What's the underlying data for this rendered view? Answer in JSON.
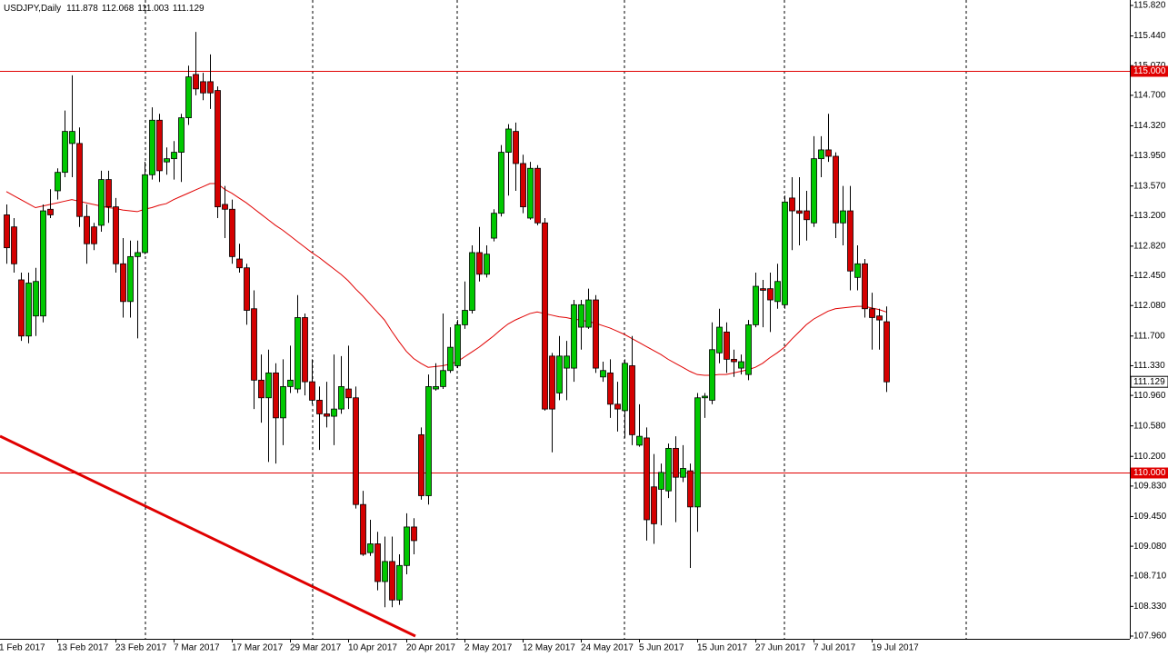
{
  "chart_data": {
    "type": "candlestick",
    "title": "USDJPY,Daily",
    "categories": [
      "1 Feb 2017",
      null,
      null,
      null,
      null,
      null,
      null,
      null,
      "13 Feb 2017",
      null,
      null,
      null,
      null,
      null,
      null,
      null,
      "23 Feb 2017",
      null,
      null,
      null,
      null,
      null,
      null,
      null,
      "7 Mar 2017",
      null,
      null,
      null,
      null,
      null,
      null,
      null,
      "17 Mar 2017",
      null,
      null,
      null,
      null,
      null,
      null,
      null,
      "29 Mar 2017",
      null,
      null,
      null,
      null,
      null,
      null,
      null,
      "10 Apr 2017",
      null,
      null,
      null,
      null,
      null,
      null,
      null,
      "20 Apr 2017",
      null,
      null,
      null,
      null,
      null,
      null,
      null,
      "2 May 2017",
      null,
      null,
      null,
      null,
      null,
      null,
      null,
      "12 May 2017",
      null,
      null,
      null,
      null,
      null,
      null,
      null,
      "24 May 2017",
      null,
      null,
      null,
      null,
      null,
      null,
      null,
      "5 Jun 2017",
      null,
      null,
      null,
      null,
      null,
      null,
      null,
      "15 Jun 2017",
      null,
      null,
      null,
      null,
      null,
      null,
      null,
      "27 Jun 2017",
      null,
      null,
      null,
      null,
      null,
      null,
      null,
      "7 Jul 2017",
      null,
      null,
      null,
      null,
      null,
      null,
      null,
      "19 Jul 2017",
      null
    ],
    "open": [
      113.21,
      113.06,
      112.4,
      111.7,
      111.95,
      111.95,
      113.28,
      113.51,
      113.74,
      114.1,
      114.1,
      113.19,
      113.06,
      113.08,
      113.65,
      113.31,
      112.6,
      112.13,
      112.69,
      112.74,
      113.71,
      114.39,
      113.87,
      113.91,
      113.99,
      114.42,
      114.96,
      114.87,
      114.87,
      114.76,
      113.34,
      113.28,
      112.66,
      112.55,
      112.04,
      111.15,
      110.93,
      111.24,
      110.68,
      111.07,
      111.04,
      111.93,
      111.13,
      110.9,
      110.73,
      110.7,
      110.79,
      111.04,
      110.93,
      109.6,
      109.0,
      109.11,
      108.64,
      108.89,
      108.41,
      108.84,
      109.32,
      110.47,
      109.71,
      111.04,
      111.07,
      111.27,
      111.33,
      111.84,
      112.02,
      112.74,
      112.47,
      112.92,
      113.23,
      113.99,
      114.25,
      113.85,
      113.17,
      113.79,
      113.11,
      111.45,
      110.99,
      111.3,
      111.3,
      111.81,
      111.81,
      112.15,
      111.19,
      111.24,
      110.85,
      110.77,
      111.33,
      110.34,
      110.43,
      109.82,
      109.79,
      109.77,
      110.3,
      109.94,
      110.02,
      109.57,
      110.93,
      110.9,
      111.49,
      111.75,
      111.41,
      111.3,
      111.22,
      111.84,
      112.29,
      112.29,
      112.13,
      112.09,
      113.42,
      113.26,
      113.26,
      113.11,
      113.91,
      114.02,
      113.94,
      113.11,
      113.26,
      112.43,
      112.6,
      112.04,
      111.95,
      111.878
    ],
    "high": [
      113.34,
      113.17,
      112.49,
      112.49,
      112.55,
      113.34,
      113.53,
      113.79,
      114.51,
      114.95,
      114.3,
      113.34,
      113.11,
      113.76,
      113.76,
      113.42,
      112.92,
      112.89,
      112.89,
      113.87,
      114.55,
      114.47,
      114.05,
      114.13,
      114.47,
      115.07,
      115.49,
      114.98,
      115.21,
      114.81,
      113.57,
      113.4,
      112.85,
      112.6,
      112.27,
      111.47,
      111.53,
      111.36,
      111.41,
      111.58,
      112.21,
      111.98,
      111.41,
      111.07,
      111.13,
      111.47,
      111.45,
      111.58,
      111.07,
      109.77,
      109.41,
      109.26,
      109.2,
      109.2,
      108.98,
      109.49,
      109.43,
      110.56,
      111.22,
      111.36,
      111.98,
      111.81,
      111.9,
      112.38,
      112.83,
      113.06,
      112.83,
      113.28,
      114.08,
      114.34,
      114.36,
      113.96,
      113.87,
      113.83,
      113.17,
      111.49,
      111.7,
      111.64,
      112.15,
      112.15,
      112.29,
      112.21,
      111.38,
      111.41,
      111.13,
      111.41,
      111.7,
      110.85,
      110.56,
      110.23,
      110.11,
      110.36,
      110.45,
      110.34,
      110.11,
      110.99,
      110.99,
      111.87,
      112.04,
      111.87,
      111.53,
      111.47,
      111.9,
      112.49,
      112.4,
      112.49,
      112.6,
      113.45,
      113.68,
      113.68,
      113.51,
      114.19,
      114.19,
      114.47,
      113.99,
      113.57,
      113.57,
      112.83,
      112.66,
      112.24,
      112.04,
      112.068
    ],
    "low": [
      112.6,
      112.49,
      111.64,
      111.61,
      111.7,
      111.87,
      113.17,
      113.4,
      113.68,
      113.68,
      113.06,
      112.6,
      112.77,
      113.0,
      113.11,
      112.49,
      111.93,
      111.93,
      111.67,
      112.72,
      113.65,
      113.62,
      113.71,
      113.65,
      113.62,
      114.33,
      114.7,
      114.64,
      114.53,
      113.17,
      112.92,
      112.6,
      112.49,
      111.84,
      110.79,
      110.62,
      110.13,
      110.11,
      110.34,
      110.99,
      110.99,
      110.96,
      110.85,
      110.28,
      110.56,
      110.34,
      110.73,
      110.79,
      109.55,
      108.96,
      108.96,
      108.53,
      108.32,
      108.32,
      108.35,
      108.73,
      108.98,
      109.66,
      109.6,
      111.02,
      111.04,
      111.24,
      111.3,
      111.79,
      111.98,
      112.38,
      112.43,
      112.88,
      113.19,
      113.45,
      113.51,
      113.23,
      113.15,
      113.08,
      110.77,
      110.25,
      110.9,
      110.9,
      111.13,
      111.53,
      111.79,
      111.24,
      111.13,
      110.68,
      110.51,
      110.43,
      110.34,
      110.32,
      109.15,
      109.11,
      109.34,
      109.68,
      109.38,
      109.88,
      108.81,
      109.26,
      110.68,
      110.85,
      111.36,
      111.24,
      111.19,
      111.22,
      111.15,
      111.81,
      111.81,
      111.75,
      112.04,
      112.04,
      112.77,
      112.83,
      112.89,
      113.06,
      113.68,
      113.87,
      112.92,
      112.83,
      112.27,
      112.27,
      111.93,
      111.53,
      111.53,
      111.003
    ],
    "close": [
      112.8,
      112.6,
      111.7,
      112.36,
      112.38,
      113.26,
      113.21,
      113.74,
      114.25,
      114.25,
      113.19,
      112.85,
      112.85,
      113.65,
      113.31,
      112.6,
      112.13,
      112.69,
      112.74,
      113.71,
      114.39,
      113.76,
      113.91,
      113.99,
      114.42,
      114.93,
      114.78,
      114.73,
      114.73,
      113.31,
      113.28,
      112.69,
      112.55,
      112.02,
      111.15,
      110.93,
      111.24,
      110.68,
      111.07,
      111.15,
      111.93,
      111.13,
      110.9,
      110.73,
      110.7,
      110.79,
      111.07,
      110.93,
      109.6,
      108.98,
      109.11,
      108.64,
      108.89,
      108.41,
      108.84,
      109.32,
      109.15,
      109.71,
      111.07,
      111.07,
      111.27,
      111.56,
      111.84,
      112.02,
      112.74,
      112.47,
      112.72,
      113.23,
      113.99,
      114.28,
      113.85,
      113.31,
      113.79,
      113.11,
      110.79,
      110.79,
      111.45,
      111.45,
      112.09,
      112.09,
      112.15,
      111.3,
      111.27,
      110.85,
      110.79,
      111.36,
      110.47,
      110.45,
      109.41,
      109.36,
      110.0,
      110.3,
      109.94,
      110.05,
      109.57,
      110.93,
      110.95,
      111.53,
      111.81,
      111.41,
      111.38,
      111.38,
      111.84,
      112.32,
      112.27,
      112.15,
      112.38,
      113.37,
      113.26,
      113.23,
      113.15,
      113.91,
      114.02,
      113.94,
      113.11,
      113.26,
      112.51,
      112.6,
      112.04,
      111.93,
      111.9,
      111.129
    ],
    "up_color": "#00c800",
    "down_color": "#d40000",
    "ma": {
      "color": "#e00000",
      "values": [
        113.5,
        113.45,
        113.4,
        113.35,
        113.3,
        113.32,
        113.34,
        113.36,
        113.38,
        113.4,
        113.38,
        113.36,
        113.34,
        113.32,
        113.3,
        113.29,
        113.27,
        113.26,
        113.25,
        113.28,
        113.3,
        113.33,
        113.35,
        113.4,
        113.44,
        113.48,
        113.52,
        113.56,
        113.6,
        113.6,
        113.53,
        113.48,
        113.42,
        113.36,
        113.29,
        113.22,
        113.15,
        113.08,
        113.02,
        112.95,
        112.88,
        112.81,
        112.74,
        112.68,
        112.61,
        112.54,
        112.47,
        112.39,
        112.29,
        112.2,
        112.1,
        112.0,
        111.9,
        111.76,
        111.63,
        111.51,
        111.42,
        111.36,
        111.31,
        111.32,
        111.33,
        111.35,
        111.38,
        111.44,
        111.5,
        111.56,
        111.63,
        111.7,
        111.78,
        111.85,
        111.9,
        111.94,
        111.98,
        112.0,
        111.98,
        111.96,
        111.94,
        111.93,
        111.91,
        111.9,
        111.88,
        111.86,
        111.83,
        111.8,
        111.76,
        111.72,
        111.67,
        111.62,
        111.57,
        111.52,
        111.47,
        111.41,
        111.36,
        111.31,
        111.26,
        111.22,
        111.21,
        111.21,
        111.22,
        111.22,
        111.24,
        111.26,
        111.28,
        111.31,
        111.36,
        111.43,
        111.49,
        111.56,
        111.66,
        111.75,
        111.84,
        111.91,
        111.96,
        112.01,
        112.04,
        112.05,
        112.06,
        112.07,
        112.07,
        112.05,
        112.03,
        112.0
      ]
    },
    "levels": [
      {
        "value": 115,
        "label": "115.000",
        "color": "#e00000"
      },
      {
        "value": 110,
        "label": "110.000",
        "color": "#e00000"
      }
    ],
    "ylim": [
      107.96,
      115.82
    ],
    "yticks": [
      {
        "value": 115.82,
        "label": "115.820"
      },
      {
        "value": 115.44,
        "label": "115.440"
      },
      {
        "value": 115.07,
        "label": "115.070"
      },
      {
        "value": 114.7,
        "label": "114.700"
      },
      {
        "value": 114.32,
        "label": "114.320"
      },
      {
        "value": 113.95,
        "label": "113.950"
      },
      {
        "value": 113.57,
        "label": "113.570"
      },
      {
        "value": 113.2,
        "label": "113.200"
      },
      {
        "value": 112.82,
        "label": "112.820"
      },
      {
        "value": 112.45,
        "label": "112.450"
      },
      {
        "value": 112.08,
        "label": "112.080"
      },
      {
        "value": 111.7,
        "label": "111.700"
      },
      {
        "value": 111.33,
        "label": "111.330"
      },
      {
        "value": 110.96,
        "label": "110.960"
      },
      {
        "value": 110.58,
        "label": "110.580"
      },
      {
        "value": 110.2,
        "label": "110.200"
      },
      {
        "value": 109.83,
        "label": "109.830"
      },
      {
        "value": 109.45,
        "label": "109.450"
      },
      {
        "value": 109.08,
        "label": "109.080"
      },
      {
        "value": 108.71,
        "label": "108.710"
      },
      {
        "value": 108.33,
        "label": "108.330"
      },
      {
        "value": 107.96,
        "label": "107.960"
      }
    ],
    "grid": true
  }
}
